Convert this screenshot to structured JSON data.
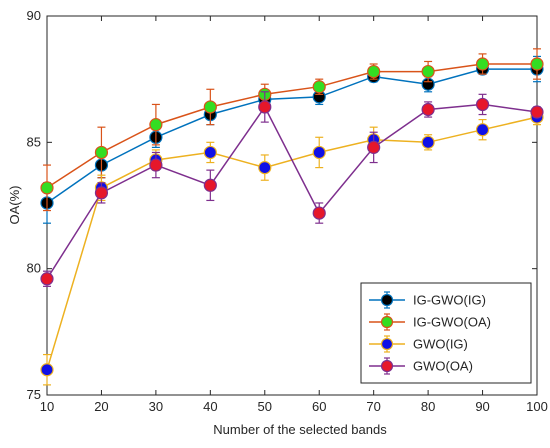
{
  "chart_data": {
    "type": "line",
    "title": "",
    "xlabel": "Number of the selected bands",
    "ylabel": "OA(%)",
    "x": [
      10,
      20,
      30,
      40,
      50,
      60,
      70,
      80,
      90,
      100
    ],
    "xlim": [
      10,
      100
    ],
    "ylim": [
      75,
      90
    ],
    "xticks": [
      "10",
      "20",
      "30",
      "40",
      "50",
      "60",
      "70",
      "80",
      "90",
      "100"
    ],
    "yticks": [
      "75",
      "80",
      "85",
      "90"
    ],
    "grid": false,
    "legend_position": "bottom-right",
    "series": [
      {
        "name": "IG-GWO(IG)",
        "line_color": "#0072BD",
        "marker_color": "#000000",
        "values": [
          82.6,
          84.1,
          85.2,
          86.1,
          86.7,
          86.8,
          87.6,
          87.3,
          87.9,
          87.9
        ],
        "errors": [
          0.8,
          0.5,
          0.4,
          0.4,
          0.3,
          0.3,
          0.2,
          0.3,
          0.2,
          0.5
        ]
      },
      {
        "name": "IG-GWO(OA)",
        "line_color": "#D95319",
        "marker_color": "#33DD22",
        "values": [
          83.2,
          84.6,
          85.7,
          86.4,
          86.9,
          87.2,
          87.8,
          87.8,
          88.1,
          88.1
        ],
        "errors": [
          0.9,
          1.0,
          0.8,
          0.7,
          0.4,
          0.3,
          0.3,
          0.4,
          0.4,
          0.6
        ]
      },
      {
        "name": "GWO(IG)",
        "line_color": "#EDB120",
        "marker_color": "#1010E6",
        "values": [
          76.0,
          83.2,
          84.3,
          84.6,
          84.0,
          84.6,
          85.1,
          85.0,
          85.5,
          86.0
        ],
        "errors": [
          0.6,
          0.5,
          0.4,
          0.4,
          0.5,
          0.6,
          0.5,
          0.3,
          0.4,
          0.3
        ]
      },
      {
        "name": "GWO(OA)",
        "line_color": "#7E2F8E",
        "marker_color": "#E6172A",
        "values": [
          79.6,
          83.0,
          84.1,
          83.3,
          86.4,
          82.2,
          84.8,
          86.3,
          86.5,
          86.2
        ],
        "errors": [
          0.3,
          0.4,
          0.5,
          0.6,
          0.6,
          0.4,
          0.6,
          0.3,
          0.4,
          0.2
        ]
      }
    ]
  }
}
